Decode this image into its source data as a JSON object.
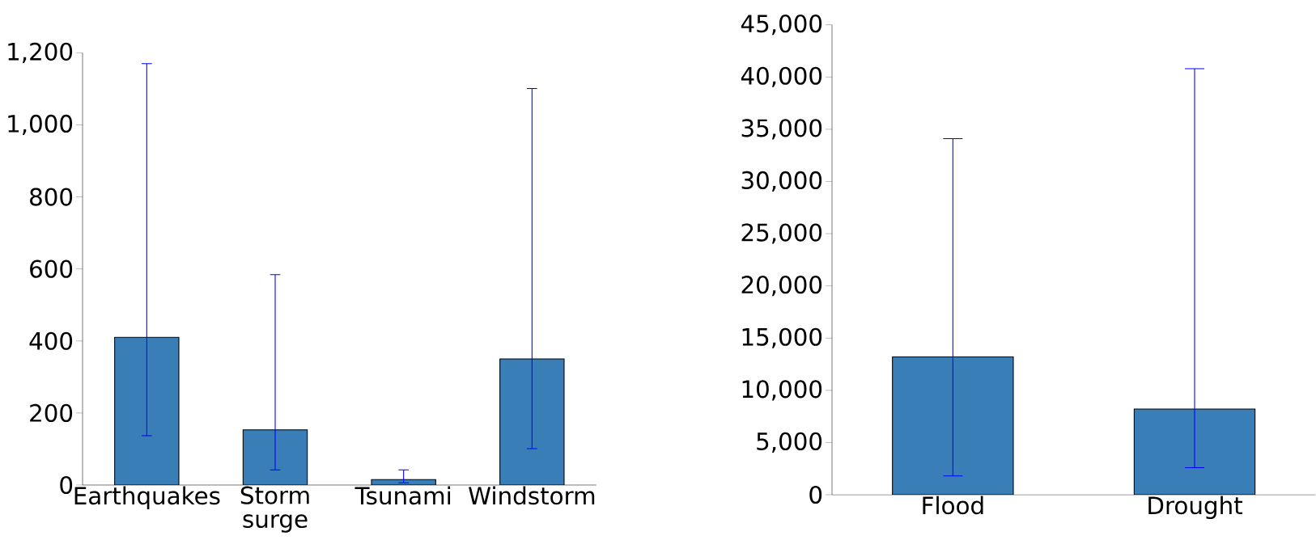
{
  "chart_data": [
    {
      "type": "bar",
      "categories": [
        "Earthquakes",
        "Storm surge",
        "Tsunami",
        "Windstorm"
      ],
      "values": [
        410,
        153,
        15,
        350
      ],
      "color": "#3a7eb8",
      "errors": [
        [
          137,
          1170
        ],
        [
          42,
          584
        ],
        [
          6,
          42
        ],
        [
          101,
          1101
        ]
      ],
      "ylim": [
        0,
        1200
      ],
      "yticks": [
        0,
        200,
        400,
        600,
        800,
        {
          "value": 1000,
          "label": "1,000"
        },
        {
          "value": 1200,
          "label": "1,200"
        }
      ]
    },
    {
      "type": "bar",
      "categories": [
        "Flood",
        "Drought"
      ],
      "values": [
        13200,
        8200
      ],
      "color": "#3a7eb8",
      "errors": [
        [
          1800,
          34100
        ],
        [
          2600,
          40800
        ]
      ],
      "ylim": [
        0,
        45000
      ],
      "yticks": [
        {
          "value": 0,
          "label": "0"
        },
        {
          "value": 5000,
          "label": "5,000"
        },
        {
          "value": 10000,
          "label": "10,000"
        },
        {
          "value": 15000,
          "label": "15,000"
        },
        {
          "value": 20000,
          "label": "20,000"
        },
        {
          "value": 25000,
          "label": "25,000"
        },
        {
          "value": 30000,
          "label": "30,000"
        },
        {
          "value": 35000,
          "label": "35,000"
        },
        {
          "value": 40000,
          "label": "40,000"
        },
        {
          "value": 45000,
          "label": "45,000"
        }
      ]
    }
  ]
}
